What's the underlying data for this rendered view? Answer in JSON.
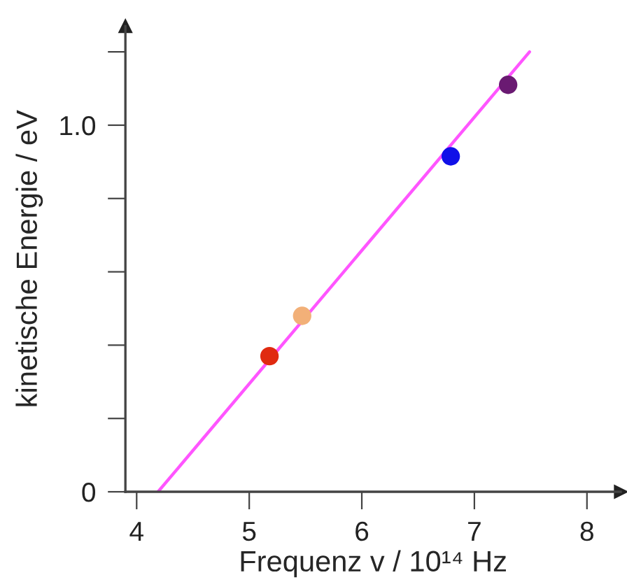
{
  "chart_data": {
    "type": "scatter",
    "xlabel": "Frequenz v / 10¹⁴ Hz",
    "ylabel": "kinetische Energie / eV",
    "series": [
      {
        "x": [
          5.18,
          5.47,
          6.79,
          7.3
        ],
        "values": [
          0.37,
          0.48,
          0.915,
          1.11
        ],
        "colors": [
          "#e02a10",
          "#f2b078",
          "#1010e8",
          "#6a1a72"
        ],
        "marker": "circle"
      },
      {
        "type": "line",
        "x": [
          4.19,
          7.49
        ],
        "values": [
          0,
          1.2
        ],
        "color": "#ff55ff"
      }
    ],
    "xlim": [
      3.9,
      8.3
    ],
    "xticks": [
      4,
      5,
      6,
      7,
      8
    ],
    "ylim": [
      0,
      1.27
    ],
    "yticks": [
      0,
      {
        "value": 0.2,
        "label": null
      },
      {
        "value": 0.4,
        "label": null
      },
      {
        "value": 0.6,
        "label": null
      },
      {
        "value": 0.8,
        "label": null
      },
      {
        "value": 1.0,
        "label": "1.0"
      },
      {
        "value": 1.2,
        "label": null
      }
    ],
    "grid": false,
    "legend": false
  }
}
